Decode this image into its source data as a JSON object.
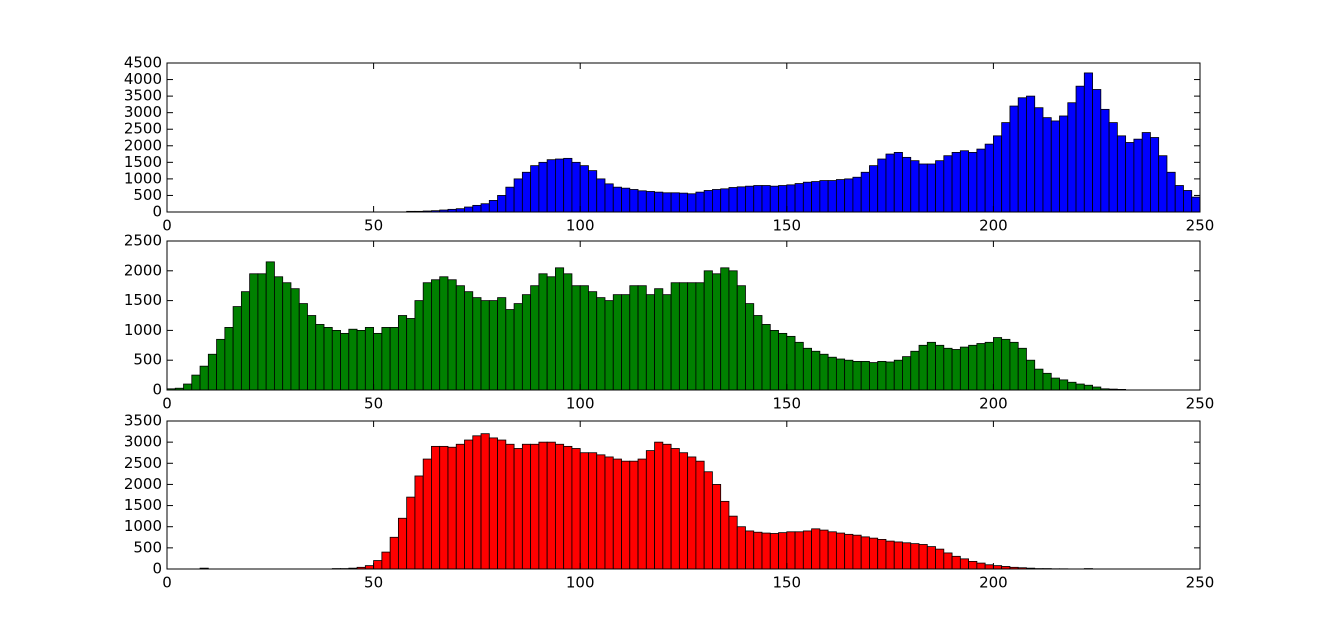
{
  "chart_data": [
    {
      "type": "histogram",
      "color": "#0000ff",
      "bins": [
        0,
        2,
        4,
        6,
        8,
        10,
        12,
        14,
        16,
        18,
        20,
        22,
        24,
        26,
        28,
        30,
        32,
        34,
        36,
        38,
        40,
        42,
        44,
        46,
        48,
        50,
        52,
        54,
        56,
        58,
        60,
        62,
        64,
        66,
        68,
        70,
        72,
        74,
        76,
        78,
        80,
        82,
        84,
        86,
        88,
        90,
        92,
        94,
        96,
        98,
        100,
        102,
        104,
        106,
        108,
        110,
        112,
        114,
        116,
        118,
        120,
        122,
        124,
        126,
        128,
        130,
        132,
        134,
        136,
        138,
        140,
        142,
        144,
        146,
        148,
        150,
        152,
        154,
        156,
        158,
        160,
        162,
        164,
        166,
        168,
        170,
        172,
        174,
        176,
        178,
        180,
        182,
        184,
        186,
        188,
        190,
        192,
        194,
        196,
        198,
        200,
        202,
        204,
        206,
        208,
        210,
        212,
        214,
        216,
        218,
        220,
        222,
        224,
        226,
        228,
        230,
        232,
        234,
        236,
        238,
        240,
        242,
        244,
        246,
        248,
        250
      ],
      "values": [
        0,
        0,
        0,
        0,
        0,
        0,
        0,
        0,
        0,
        0,
        0,
        0,
        0,
        0,
        0,
        0,
        0,
        0,
        0,
        0,
        0,
        0,
        0,
        0,
        0,
        0,
        0,
        0,
        0,
        20,
        20,
        30,
        40,
        60,
        80,
        100,
        150,
        200,
        250,
        350,
        500,
        750,
        1000,
        1200,
        1400,
        1500,
        1580,
        1600,
        1620,
        1500,
        1400,
        1250,
        1000,
        850,
        750,
        720,
        680,
        640,
        620,
        600,
        580,
        580,
        570,
        550,
        600,
        650,
        680,
        700,
        740,
        760,
        780,
        800,
        800,
        780,
        800,
        820,
        860,
        900,
        920,
        950,
        950,
        980,
        1000,
        1050,
        1200,
        1400,
        1600,
        1750,
        1800,
        1650,
        1550,
        1450,
        1450,
        1550,
        1700,
        1800,
        1850,
        1800,
        1900,
        2050,
        2300,
        2700,
        3200,
        3450,
        3500,
        3150,
        2850,
        2750,
        2900,
        3300,
        3800,
        4200,
        3700,
        3100,
        2700,
        2300,
        2100,
        2200,
        2400,
        2250,
        1700,
        1200,
        800,
        650,
        450
      ],
      "xlim": [
        0,
        250
      ],
      "xticks": [
        0,
        50,
        100,
        150,
        200,
        250
      ],
      "ylim": [
        0,
        4500
      ],
      "yticks": [
        0,
        500,
        1000,
        1500,
        2000,
        2500,
        3000,
        3500,
        4000,
        4500
      ]
    },
    {
      "type": "histogram",
      "color": "#008000",
      "bins": [
        0,
        2,
        4,
        6,
        8,
        10,
        12,
        14,
        16,
        18,
        20,
        22,
        24,
        26,
        28,
        30,
        32,
        34,
        36,
        38,
        40,
        42,
        44,
        46,
        48,
        50,
        52,
        54,
        56,
        58,
        60,
        62,
        64,
        66,
        68,
        70,
        72,
        74,
        76,
        78,
        80,
        82,
        84,
        86,
        88,
        90,
        92,
        94,
        96,
        98,
        100,
        102,
        104,
        106,
        108,
        110,
        112,
        114,
        116,
        118,
        120,
        122,
        124,
        126,
        128,
        130,
        132,
        134,
        136,
        138,
        140,
        142,
        144,
        146,
        148,
        150,
        152,
        154,
        156,
        158,
        160,
        162,
        164,
        166,
        168,
        170,
        172,
        174,
        176,
        178,
        180,
        182,
        184,
        186,
        188,
        190,
        192,
        194,
        196,
        198,
        200,
        202,
        204,
        206,
        208,
        210,
        212,
        214,
        216,
        218,
        220,
        222,
        224,
        226,
        228,
        230,
        232,
        234,
        236,
        238,
        240,
        242,
        244,
        246,
        248,
        250
      ],
      "values": [
        20,
        30,
        100,
        250,
        400,
        600,
        850,
        1050,
        1400,
        1650,
        1950,
        1950,
        2150,
        1900,
        1800,
        1700,
        1450,
        1250,
        1100,
        1050,
        1000,
        950,
        1020,
        1000,
        1050,
        950,
        1050,
        1050,
        1250,
        1200,
        1500,
        1800,
        1850,
        1900,
        1850,
        1750,
        1650,
        1550,
        1500,
        1500,
        1550,
        1350,
        1450,
        1600,
        1750,
        1950,
        1900,
        2050,
        1950,
        1750,
        1750,
        1650,
        1550,
        1500,
        1600,
        1600,
        1750,
        1750,
        1600,
        1700,
        1600,
        1800,
        1800,
        1800,
        1800,
        2000,
        1950,
        2050,
        2000,
        1750,
        1450,
        1250,
        1100,
        1000,
        950,
        900,
        800,
        700,
        650,
        600,
        550,
        520,
        500,
        480,
        480,
        460,
        480,
        470,
        500,
        560,
        650,
        750,
        800,
        750,
        700,
        680,
        720,
        750,
        780,
        800,
        880,
        850,
        800,
        700,
        500,
        350,
        280,
        200,
        170,
        130,
        100,
        80,
        50,
        20,
        15,
        10,
        0,
        0,
        0,
        0,
        0,
        0,
        0,
        0,
        0
      ],
      "xlim": [
        0,
        250
      ],
      "xticks": [
        0,
        50,
        100,
        150,
        200,
        250
      ],
      "ylim": [
        0,
        2500
      ],
      "yticks": [
        0,
        500,
        1000,
        1500,
        2000,
        2500
      ]
    },
    {
      "type": "histogram",
      "color": "#ff0000",
      "bins": [
        0,
        2,
        4,
        6,
        8,
        10,
        12,
        14,
        16,
        18,
        20,
        22,
        24,
        26,
        28,
        30,
        32,
        34,
        36,
        38,
        40,
        42,
        44,
        46,
        48,
        50,
        52,
        54,
        56,
        58,
        60,
        62,
        64,
        66,
        68,
        70,
        72,
        74,
        76,
        78,
        80,
        82,
        84,
        86,
        88,
        90,
        92,
        94,
        96,
        98,
        100,
        102,
        104,
        106,
        108,
        110,
        112,
        114,
        116,
        118,
        120,
        122,
        124,
        126,
        128,
        130,
        132,
        134,
        136,
        138,
        140,
        142,
        144,
        146,
        148,
        150,
        152,
        154,
        156,
        158,
        160,
        162,
        164,
        166,
        168,
        170,
        172,
        174,
        176,
        178,
        180,
        182,
        184,
        186,
        188,
        190,
        192,
        194,
        196,
        198,
        200,
        202,
        204,
        206,
        208,
        210,
        212,
        214,
        216,
        218,
        220,
        222,
        224,
        226,
        228,
        230,
        232,
        234,
        236,
        238,
        240,
        242,
        244,
        246,
        248,
        250
      ],
      "values": [
        0,
        0,
        0,
        0,
        20,
        0,
        0,
        0,
        0,
        0,
        0,
        0,
        0,
        0,
        0,
        0,
        0,
        0,
        0,
        0,
        10,
        10,
        20,
        40,
        80,
        200,
        400,
        750,
        1200,
        1700,
        2200,
        2600,
        2900,
        2900,
        2880,
        2950,
        3050,
        3150,
        3200,
        3100,
        3050,
        2950,
        2850,
        2950,
        2950,
        3000,
        3000,
        2950,
        2900,
        2850,
        2750,
        2750,
        2700,
        2650,
        2600,
        2550,
        2550,
        2600,
        2800,
        3000,
        2950,
        2850,
        2750,
        2650,
        2550,
        2300,
        2000,
        1600,
        1250,
        1000,
        900,
        870,
        850,
        840,
        860,
        880,
        880,
        900,
        950,
        920,
        880,
        850,
        820,
        800,
        760,
        730,
        700,
        660,
        640,
        620,
        600,
        580,
        530,
        470,
        380,
        300,
        240,
        180,
        140,
        100,
        80,
        60,
        40,
        30,
        20,
        10,
        10,
        5,
        5,
        0,
        0,
        10,
        0,
        0,
        0,
        0,
        0,
        0,
        0,
        0,
        0,
        0,
        0,
        0,
        0
      ],
      "xlim": [
        0,
        250
      ],
      "xticks": [
        0,
        50,
        100,
        150,
        200,
        250
      ],
      "ylim": [
        0,
        3500
      ],
      "yticks": [
        0,
        500,
        1000,
        1500,
        2000,
        2500,
        3000,
        3500
      ]
    }
  ]
}
